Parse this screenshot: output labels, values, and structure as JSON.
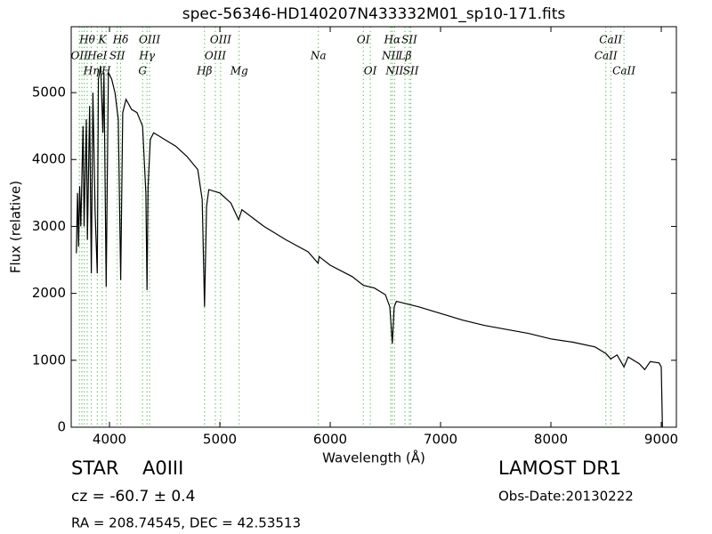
{
  "chart_data": {
    "type": "line",
    "title": "spec-56346-HD140207N433332M01_sp10-171.fits",
    "x_label": "Wavelength (Å)",
    "y_label": "Flux (relative)",
    "xlim": [
      3653,
      9137
    ],
    "ylim": [
      0,
      5985
    ],
    "xticks": [
      4000,
      5000,
      6000,
      7000,
      8000,
      9000
    ],
    "yticks": [
      0,
      1000,
      2000,
      3000,
      4000,
      5000
    ],
    "color": "#000000",
    "marker_color": "#66bb66",
    "x": [
      3700,
      3710,
      3720,
      3730,
      3740,
      3760,
      3770,
      3790,
      3800,
      3820,
      3835,
      3850,
      3870,
      3889,
      3900,
      3920,
      3940,
      3950,
      3970,
      3990,
      4020,
      4050,
      4080,
      4101,
      4120,
      4150,
      4200,
      4250,
      4300,
      4330,
      4340,
      4350,
      4370,
      4400,
      4450,
      4500,
      4600,
      4700,
      4800,
      4840,
      4861,
      4880,
      4900,
      5000,
      5100,
      5170,
      5200,
      5400,
      5600,
      5800,
      5890,
      5900,
      6000,
      6200,
      6300,
      6400,
      6500,
      6540,
      6563,
      6580,
      6600,
      6800,
      7000,
      7200,
      7400,
      7600,
      7800,
      8000,
      8200,
      8400,
      8500,
      8542,
      8600,
      8662,
      8700,
      8800,
      8850,
      8900,
      8980,
      9000,
      9010
    ],
    "values": [
      2600,
      3500,
      2700,
      3600,
      3000,
      4500,
      3000,
      4600,
      2800,
      4800,
      2300,
      5000,
      3200,
      2300,
      5200,
      5400,
      4400,
      5300,
      2100,
      5300,
      5200,
      5000,
      4600,
      2200,
      4700,
      4900,
      4750,
      4700,
      4500,
      3500,
      2050,
      3600,
      4300,
      4400,
      4350,
      4300,
      4200,
      4050,
      3850,
      3400,
      1800,
      3300,
      3550,
      3500,
      3350,
      3100,
      3250,
      3000,
      2800,
      2620,
      2450,
      2550,
      2420,
      2250,
      2120,
      2080,
      1980,
      1800,
      1250,
      1800,
      1880,
      1800,
      1700,
      1600,
      1520,
      1460,
      1400,
      1320,
      1270,
      1200,
      1100,
      1020,
      1080,
      900,
      1050,
      950,
      860,
      980,
      960,
      900,
      0
    ],
    "line_markers": [
      3727,
      3750,
      3771,
      3798,
      3835,
      3889,
      3934,
      3969,
      4070,
      4101,
      4300,
      4340,
      4363,
      4861,
      4959,
      5007,
      5175,
      5893,
      6300,
      6363,
      6548,
      6563,
      6583,
      6677,
      6717,
      6731,
      8498,
      8542,
      8662
    ],
    "line_labels": [
      [
        {
          "x": 3798,
          "label": "Hθ"
        },
        {
          "x": 3934,
          "label": "K"
        },
        {
          "x": 4101,
          "label": "Hδ"
        },
        {
          "x": 4363,
          "label": "OIII"
        },
        {
          "x": 5007,
          "label": "OIII"
        },
        {
          "x": 6300,
          "label": "OI"
        },
        {
          "x": 6563,
          "label": "Hα"
        },
        {
          "x": 6717,
          "label": "SII"
        },
        {
          "x": 8542,
          "label": "CaII"
        }
      ],
      [
        {
          "x": 3727,
          "label": "OII"
        },
        {
          "x": 3889,
          "label": "HeI"
        },
        {
          "x": 4070,
          "label": "SII"
        },
        {
          "x": 4340,
          "label": "Hγ"
        },
        {
          "x": 4959,
          "label": "OIII"
        },
        {
          "x": 5893,
          "label": "Na"
        },
        {
          "x": 6548,
          "label": "NII"
        },
        {
          "x": 6677,
          "label": "Lβ"
        },
        {
          "x": 8498,
          "label": "CaII"
        }
      ],
      [
        {
          "x": 3835,
          "label": "Hη"
        },
        {
          "x": 3969,
          "label": "H"
        },
        {
          "x": 4300,
          "label": "G"
        },
        {
          "x": 4861,
          "label": "Hβ"
        },
        {
          "x": 5175,
          "label": "Mg"
        },
        {
          "x": 6363,
          "label": "OI"
        },
        {
          "x": 6583,
          "label": "NII"
        },
        {
          "x": 6731,
          "label": "SII"
        },
        {
          "x": 8662,
          "label": "CaII"
        }
      ]
    ],
    "footer": {
      "class": "STAR",
      "subclass": "A0III",
      "redshift": "cz = -60.7 ± 0.4",
      "coords": "RA = 208.74545, DEC = 42.53513",
      "survey": "LAMOST DR1",
      "date": "Obs-Date:20130222"
    }
  }
}
